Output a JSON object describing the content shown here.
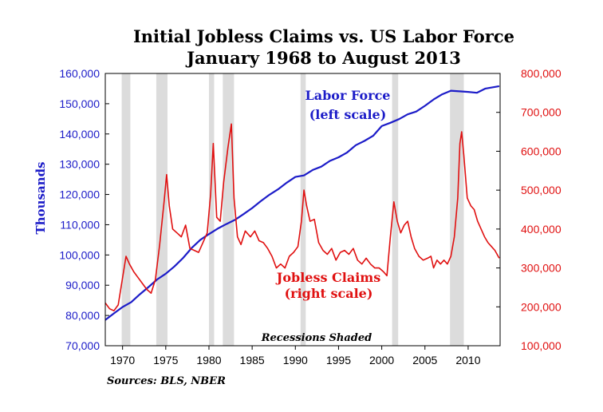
{
  "chart_data": {
    "type": "line",
    "title_line1": "Initial Jobless Claims vs. US Labor Force",
    "title_line2": "January 1968 to August 2013",
    "ylabel": "Thousands",
    "ylim_left": [
      70000,
      160000
    ],
    "ylim_right": [
      100000,
      800000
    ],
    "xlim": [
      1968,
      2013.7
    ],
    "yticks_left": [
      "70,000",
      "80,000",
      "90,000",
      "100,000",
      "110,000",
      "120,000",
      "130,000",
      "140,000",
      "150,000",
      "160,000"
    ],
    "yticks_left_values": [
      70000,
      80000,
      90000,
      100000,
      110000,
      120000,
      130000,
      140000,
      150000,
      160000
    ],
    "yticks_right": [
      "100,000",
      "200,000",
      "300,000",
      "400,000",
      "500,000",
      "600,000",
      "700,000",
      "800,000"
    ],
    "yticks_right_values": [
      100000,
      200000,
      300000,
      400000,
      500000,
      600000,
      700000,
      800000
    ],
    "xticks": [
      "1970",
      "1975",
      "1980",
      "1985",
      "1990",
      "1995",
      "2000",
      "2005",
      "2010"
    ],
    "xticks_values": [
      1970,
      1975,
      1980,
      1985,
      1990,
      1995,
      2000,
      2005,
      2010
    ],
    "recessions": [
      [
        1969.9,
        1970.9
      ],
      [
        1973.9,
        1975.2
      ],
      [
        1980.0,
        1980.6
      ],
      [
        1981.6,
        1982.9
      ],
      [
        1990.6,
        1991.2
      ],
      [
        2001.2,
        2001.9
      ],
      [
        2007.9,
        2009.5
      ]
    ],
    "annotations": {
      "labor_force_line1": "Labor Force",
      "labor_force_line2": "(left scale)",
      "jobless_line1": "Jobless Claims",
      "jobless_line2": "(right scale)",
      "recessions_note": "Recessions Shaded",
      "sources": "Sources: BLS, NBER"
    },
    "colors": {
      "labor_force": "#1c1cc8",
      "jobless_claims": "#e01010",
      "recession": "#dcdcdc"
    },
    "series": [
      {
        "name": "Labor Force",
        "axis": "left",
        "x": [
          1968,
          1969,
          1970,
          1971,
          1972,
          1973,
          1974,
          1975,
          1976,
          1977,
          1978,
          1979,
          1980,
          1981,
          1982,
          1983,
          1984,
          1985,
          1986,
          1987,
          1988,
          1989,
          1990,
          1991,
          1992,
          1993,
          1994,
          1995,
          1996,
          1997,
          1998,
          1999,
          2000,
          2001,
          2002,
          2003,
          2004,
          2005,
          2006,
          2007,
          2008,
          2009,
          2010,
          2011,
          2012,
          2013.6
        ],
        "values": [
          78500,
          80700,
          82800,
          84400,
          87000,
          89400,
          91900,
          93800,
          96200,
          99000,
          102300,
          105000,
          106900,
          108700,
          110200,
          111600,
          113500,
          115500,
          117800,
          119900,
          121700,
          123900,
          125800,
          126300,
          128100,
          129200,
          131100,
          132300,
          133900,
          136300,
          137700,
          139400,
          142600,
          143700,
          144900,
          146500,
          147400,
          149300,
          151400,
          153100,
          154300,
          154100,
          153900,
          153600,
          155000,
          155800
        ]
      },
      {
        "name": "Jobless Claims",
        "axis": "right",
        "x": [
          1968,
          1968.5,
          1969,
          1969.5,
          1970,
          1970.4,
          1970.8,
          1971.3,
          1971.8,
          1972.3,
          1972.8,
          1973.3,
          1973.8,
          1974.3,
          1974.8,
          1975.1,
          1975.4,
          1975.8,
          1976.3,
          1976.8,
          1977.3,
          1977.8,
          1978.3,
          1978.8,
          1979.3,
          1979.8,
          1980.2,
          1980.5,
          1980.9,
          1981.3,
          1981.7,
          1982.2,
          1982.6,
          1982.9,
          1983.3,
          1983.7,
          1984.2,
          1984.8,
          1985.3,
          1985.8,
          1986.3,
          1986.8,
          1987.3,
          1987.8,
          1988.3,
          1988.8,
          1989.3,
          1989.8,
          1990.3,
          1990.7,
          1991.0,
          1991.3,
          1991.7,
          1992.2,
          1992.7,
          1993.2,
          1993.7,
          1994.2,
          1994.7,
          1995.2,
          1995.7,
          1996.2,
          1996.7,
          1997.2,
          1997.7,
          1998.2,
          1998.7,
          1999.2,
          1999.7,
          2000.2,
          2000.6,
          2001.0,
          2001.4,
          2001.8,
          2002.2,
          2002.6,
          2003.0,
          2003.4,
          2003.8,
          2004.3,
          2004.8,
          2005.3,
          2005.7,
          2006.0,
          2006.4,
          2006.8,
          2007.2,
          2007.6,
          2008.0,
          2008.4,
          2008.8,
          2009.05,
          2009.25,
          2009.5,
          2009.9,
          2010.3,
          2010.7,
          2011.1,
          2011.5,
          2011.9,
          2012.3,
          2012.7,
          2013.1,
          2013.6
        ],
        "values": [
          210000,
          195000,
          190000,
          205000,
          275000,
          330000,
          310000,
          290000,
          275000,
          260000,
          245000,
          235000,
          270000,
          360000,
          470000,
          540000,
          460000,
          400000,
          390000,
          380000,
          410000,
          350000,
          345000,
          340000,
          365000,
          390000,
          490000,
          620000,
          430000,
          420000,
          520000,
          610000,
          670000,
          480000,
          380000,
          360000,
          395000,
          380000,
          395000,
          370000,
          365000,
          350000,
          330000,
          300000,
          310000,
          300000,
          330000,
          340000,
          355000,
          420000,
          500000,
          460000,
          420000,
          425000,
          365000,
          345000,
          335000,
          350000,
          320000,
          340000,
          345000,
          335000,
          350000,
          320000,
          310000,
          325000,
          310000,
          300000,
          300000,
          290000,
          280000,
          380000,
          470000,
          420000,
          390000,
          410000,
          420000,
          380000,
          350000,
          330000,
          320000,
          325000,
          330000,
          300000,
          320000,
          310000,
          320000,
          310000,
          330000,
          380000,
          480000,
          620000,
          650000,
          590000,
          480000,
          460000,
          450000,
          420000,
          400000,
          380000,
          365000,
          355000,
          345000,
          325000
        ]
      }
    ]
  }
}
